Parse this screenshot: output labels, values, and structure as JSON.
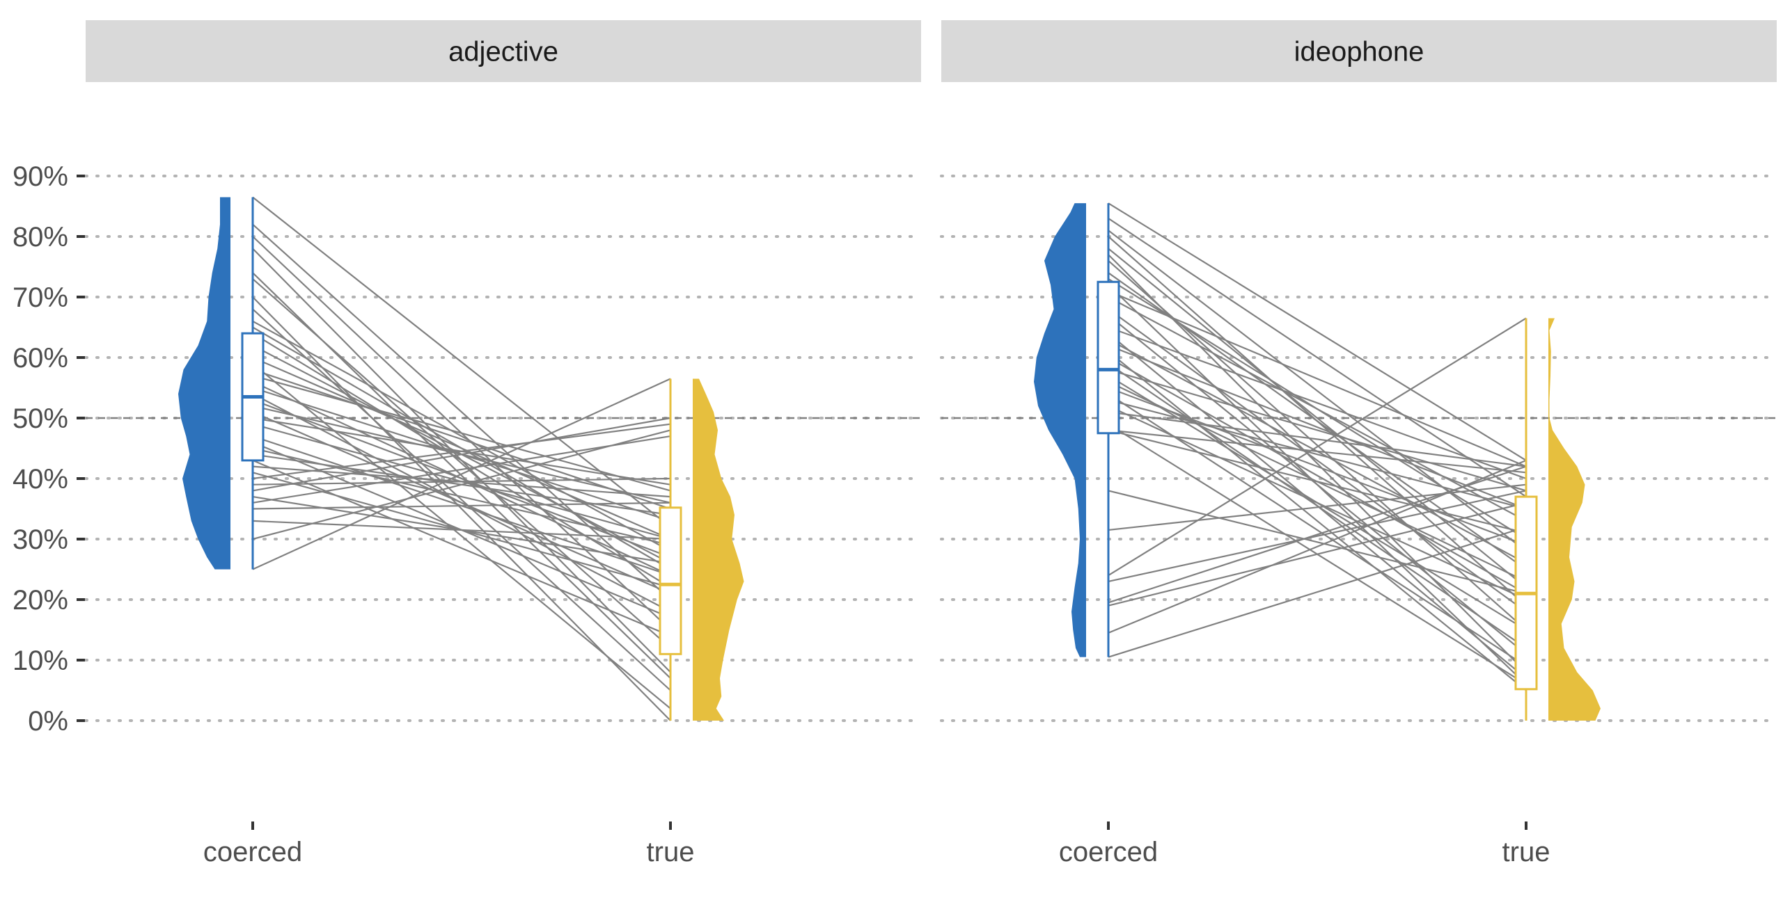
{
  "chart_data": {
    "type": "raincloud",
    "title": "",
    "xlabel": "",
    "ylabel": "",
    "ylim": [
      0,
      1
    ],
    "y_ticks": [
      0,
      0.1,
      0.2,
      0.3,
      0.4,
      0.5,
      0.6,
      0.7,
      0.8,
      0.9
    ],
    "y_tick_labels": [
      "0%",
      "10%",
      "20%",
      "30%",
      "40%",
      "50%",
      "60%",
      "70%",
      "80%",
      "90%"
    ],
    "reference_line": 0.5,
    "grid": "horizontal-dotted",
    "categories": [
      "coerced",
      "true"
    ],
    "colors": {
      "coerced": "#2d72bb",
      "true": "#e6bf3e",
      "lines": "#808080",
      "strip": "#d9d9d9"
    },
    "panels": [
      {
        "name": "adjective",
        "coerced": {
          "box": {
            "min": 0.25,
            "q1": 0.43,
            "median": 0.535,
            "q3": 0.64,
            "max": 0.865
          },
          "density": [
            [
              0.25,
              0.3
            ],
            [
              0.27,
              0.45
            ],
            [
              0.3,
              0.62
            ],
            [
              0.33,
              0.75
            ],
            [
              0.37,
              0.85
            ],
            [
              0.4,
              0.92
            ],
            [
              0.42,
              0.85
            ],
            [
              0.44,
              0.78
            ],
            [
              0.47,
              0.85
            ],
            [
              0.5,
              0.95
            ],
            [
              0.54,
              1.0
            ],
            [
              0.58,
              0.9
            ],
            [
              0.62,
              0.62
            ],
            [
              0.66,
              0.45
            ],
            [
              0.7,
              0.42
            ],
            [
              0.74,
              0.35
            ],
            [
              0.78,
              0.25
            ],
            [
              0.82,
              0.2
            ],
            [
              0.865,
              0.2
            ]
          ]
        },
        "true": {
          "box": {
            "min": 0.0,
            "q1": 0.11,
            "median": 0.225,
            "q3": 0.352,
            "max": 0.565
          },
          "density": [
            [
              0.0,
              0.6
            ],
            [
              0.02,
              0.45
            ],
            [
              0.04,
              0.55
            ],
            [
              0.07,
              0.52
            ],
            [
              0.1,
              0.58
            ],
            [
              0.15,
              0.7
            ],
            [
              0.2,
              0.85
            ],
            [
              0.23,
              0.98
            ],
            [
              0.26,
              0.9
            ],
            [
              0.3,
              0.75
            ],
            [
              0.34,
              0.8
            ],
            [
              0.37,
              0.72
            ],
            [
              0.4,
              0.55
            ],
            [
              0.44,
              0.42
            ],
            [
              0.48,
              0.48
            ],
            [
              0.51,
              0.4
            ],
            [
              0.54,
              0.25
            ],
            [
              0.565,
              0.12
            ]
          ]
        },
        "pairs": [
          [
            0.865,
            0.32
          ],
          [
            0.82,
            0.2
          ],
          [
            0.8,
            0.15
          ],
          [
            0.78,
            0.08
          ],
          [
            0.74,
            0.07
          ],
          [
            0.73,
            0.12
          ],
          [
            0.7,
            0.0
          ],
          [
            0.68,
            0.05
          ],
          [
            0.66,
            0.28
          ],
          [
            0.65,
            0.25
          ],
          [
            0.64,
            0.22
          ],
          [
            0.62,
            0.26
          ],
          [
            0.6,
            0.3
          ],
          [
            0.59,
            0.02
          ],
          [
            0.58,
            0.35
          ],
          [
            0.57,
            0.38
          ],
          [
            0.56,
            0.24
          ],
          [
            0.55,
            0.33
          ],
          [
            0.54,
            0.18
          ],
          [
            0.53,
            0.27
          ],
          [
            0.52,
            0.36
          ],
          [
            0.51,
            0.21
          ],
          [
            0.5,
            0.39
          ],
          [
            0.49,
            0.3
          ],
          [
            0.47,
            0.24
          ],
          [
            0.46,
            0.17
          ],
          [
            0.45,
            0.29
          ],
          [
            0.44,
            0.34
          ],
          [
            0.43,
            0.14
          ],
          [
            0.42,
            0.37
          ],
          [
            0.41,
            0.22
          ],
          [
            0.4,
            0.49
          ],
          [
            0.39,
            0.4
          ],
          [
            0.38,
            0.5
          ],
          [
            0.37,
            0.26
          ],
          [
            0.36,
            0.47
          ],
          [
            0.35,
            0.36
          ],
          [
            0.33,
            0.3
          ],
          [
            0.3,
            0.48
          ],
          [
            0.25,
            0.565
          ]
        ]
      },
      {
        "name": "ideophone",
        "coerced": {
          "box": {
            "min": 0.105,
            "q1": 0.475,
            "median": 0.58,
            "q3": 0.725,
            "max": 0.855
          },
          "density": [
            [
              0.105,
              0.12
            ],
            [
              0.12,
              0.2
            ],
            [
              0.15,
              0.25
            ],
            [
              0.18,
              0.28
            ],
            [
              0.22,
              0.22
            ],
            [
              0.26,
              0.15
            ],
            [
              0.3,
              0.12
            ],
            [
              0.35,
              0.15
            ],
            [
              0.4,
              0.22
            ],
            [
              0.44,
              0.45
            ],
            [
              0.48,
              0.72
            ],
            [
              0.52,
              0.92
            ],
            [
              0.56,
              1.0
            ],
            [
              0.6,
              0.95
            ],
            [
              0.64,
              0.8
            ],
            [
              0.68,
              0.62
            ],
            [
              0.72,
              0.68
            ],
            [
              0.76,
              0.8
            ],
            [
              0.8,
              0.6
            ],
            [
              0.84,
              0.3
            ],
            [
              0.855,
              0.22
            ]
          ]
        },
        "true": {
          "box": {
            "min": 0.0,
            "q1": 0.052,
            "median": 0.21,
            "q3": 0.37,
            "max": 0.665
          },
          "density": [
            [
              0.0,
              0.9
            ],
            [
              0.02,
              1.0
            ],
            [
              0.05,
              0.85
            ],
            [
              0.08,
              0.55
            ],
            [
              0.12,
              0.3
            ],
            [
              0.16,
              0.25
            ],
            [
              0.2,
              0.45
            ],
            [
              0.23,
              0.5
            ],
            [
              0.27,
              0.4
            ],
            [
              0.32,
              0.45
            ],
            [
              0.36,
              0.65
            ],
            [
              0.39,
              0.7
            ],
            [
              0.42,
              0.55
            ],
            [
              0.45,
              0.3
            ],
            [
              0.48,
              0.08
            ],
            [
              0.5,
              0.02
            ],
            [
              0.53,
              0.02
            ],
            [
              0.57,
              0.04
            ],
            [
              0.61,
              0.05
            ],
            [
              0.645,
              0.02
            ],
            [
              0.665,
              0.12
            ]
          ]
        },
        "pairs": [
          [
            0.855,
            0.43
          ],
          [
            0.83,
            0.37
          ],
          [
            0.81,
            0.28
          ],
          [
            0.8,
            0.19
          ],
          [
            0.78,
            0.22
          ],
          [
            0.77,
            0.08
          ],
          [
            0.76,
            0.15
          ],
          [
            0.74,
            0.25
          ],
          [
            0.73,
            0.3
          ],
          [
            0.72,
            0.06
          ],
          [
            0.71,
            0.42
          ],
          [
            0.7,
            0.33
          ],
          [
            0.68,
            0.18
          ],
          [
            0.67,
            0.11
          ],
          [
            0.65,
            0.4
          ],
          [
            0.64,
            0.07
          ],
          [
            0.63,
            0.26
          ],
          [
            0.62,
            0.35
          ],
          [
            0.61,
            0.05
          ],
          [
            0.6,
            0.21
          ],
          [
            0.59,
            0.12
          ],
          [
            0.58,
            0.38
          ],
          [
            0.57,
            0.15
          ],
          [
            0.56,
            0.23
          ],
          [
            0.55,
            0.29
          ],
          [
            0.54,
            0.09
          ],
          [
            0.53,
            0.35
          ],
          [
            0.52,
            0.2
          ],
          [
            0.51,
            0.42
          ],
          [
            0.49,
            0.06
          ],
          [
            0.48,
            0.41
          ],
          [
            0.48,
            0.31
          ],
          [
            0.38,
            0.21
          ],
          [
            0.315,
            0.39
          ],
          [
            0.24,
            0.665
          ],
          [
            0.23,
            0.38
          ],
          [
            0.195,
            0.42
          ],
          [
            0.19,
            0.36
          ],
          [
            0.145,
            0.43
          ],
          [
            0.105,
            0.32
          ]
        ]
      }
    ]
  }
}
